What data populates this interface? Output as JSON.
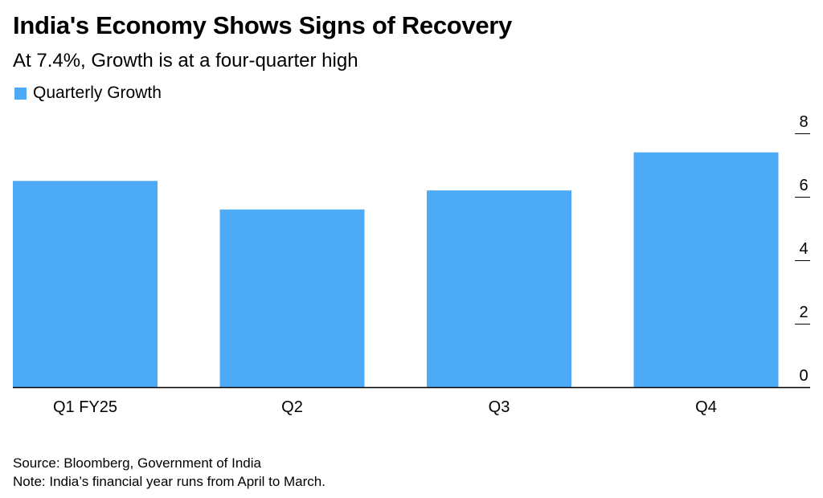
{
  "header": {
    "title": "India's Economy Shows Signs of Recovery",
    "subtitle": "At 7.4%, Growth is at a four-quarter high"
  },
  "footer": {
    "source": "Source: Bloomberg, Government of India",
    "note": "Note: India’s financial year runs from April to March."
  },
  "chart_data": {
    "type": "bar",
    "categories": [
      "Q1 FY25",
      "Q2",
      "Q3",
      "Q4"
    ],
    "series": [
      {
        "name": "Quarterly Growth",
        "values": [
          6.5,
          5.6,
          6.2,
          7.4
        ],
        "color": "#4daaf7"
      }
    ],
    "ylim": [
      0,
      8
    ],
    "yticks": [
      "0",
      "2",
      "4",
      "6",
      "8"
    ],
    "y_axis_position": "right",
    "legend_position": "top-left",
    "grid": false
  }
}
